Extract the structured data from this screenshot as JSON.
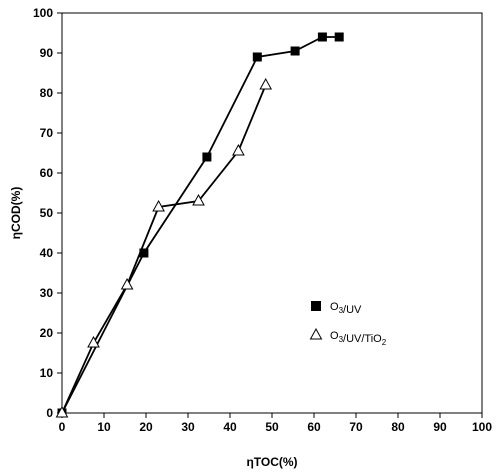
{
  "chart_data": {
    "type": "scatter",
    "xlabel": "ηTOC(%)",
    "ylabel": "ηCOD(%)",
    "xlim": [
      0,
      100
    ],
    "ylim": [
      0,
      100
    ],
    "xticks": [
      0,
      10,
      20,
      30,
      40,
      50,
      60,
      70,
      80,
      90,
      100
    ],
    "yticks": [
      0,
      10,
      20,
      30,
      40,
      50,
      60,
      70,
      80,
      90,
      100
    ],
    "grid": false,
    "legend_position": "right-lower",
    "series": [
      {
        "name": "O3/UV",
        "name_parts": [
          {
            "t": "O"
          },
          {
            "t": "3",
            "sub": true
          },
          {
            "t": "/UV"
          }
        ],
        "marker": "filled-square",
        "color": "#000000",
        "x": [
          0,
          19.5,
          34.5,
          46.5,
          55.5,
          62,
          66
        ],
        "y": [
          0,
          40,
          64,
          89,
          90.5,
          94,
          94
        ]
      },
      {
        "name": "O3/UV/TiO2",
        "name_parts": [
          {
            "t": "O"
          },
          {
            "t": "3",
            "sub": true
          },
          {
            "t": "/UV/TiO"
          },
          {
            "t": "2",
            "sub": true
          }
        ],
        "marker": "open-triangle",
        "color": "#000000",
        "x": [
          0,
          7.5,
          15.5,
          23,
          32.5,
          42,
          48.5
        ],
        "y": [
          0,
          17.5,
          32,
          51.5,
          53,
          65.5,
          82
        ]
      }
    ]
  }
}
